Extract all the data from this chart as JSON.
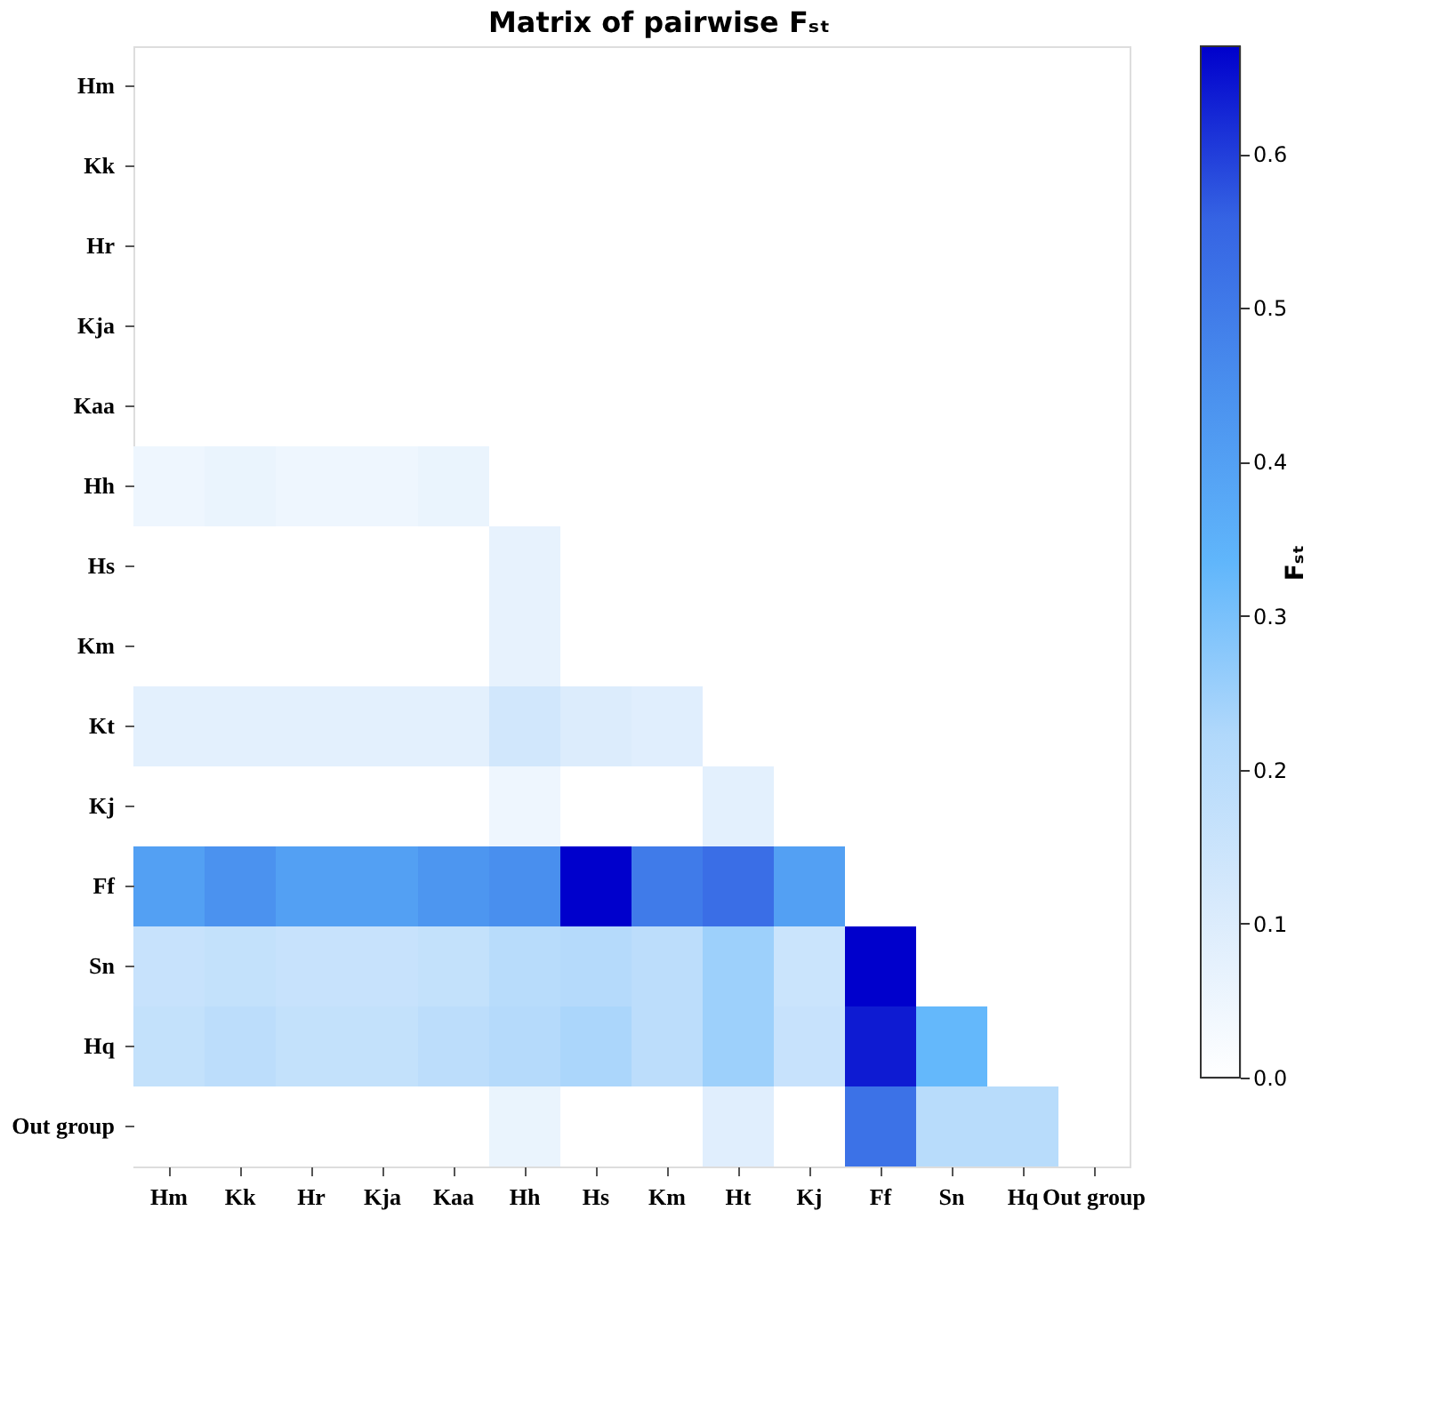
{
  "chart_data": {
    "type": "heatmap",
    "title": "Matrix of pairwise Fₛₜ",
    "clabel": "Fₛₜ",
    "categories": [
      "Hm",
      "Kk",
      "Hr",
      "Kja",
      "Kaa",
      "Hh",
      "Hs",
      "Km",
      "Ht",
      "Kj",
      "Ff",
      "Sn",
      "Hq",
      "Out group"
    ],
    "y_categories": [
      "Hm",
      "Kk",
      "Hr",
      "Kja",
      "Kaa",
      "Hh",
      "Hs",
      "Km",
      "Kt",
      "Kj",
      "Ff",
      "Sn",
      "Hq",
      "Out group"
    ],
    "cells": [
      [
        null,
        null,
        null,
        null,
        null,
        null,
        null,
        null,
        null,
        null,
        null,
        null,
        null,
        null
      ],
      [
        null,
        null,
        null,
        null,
        null,
        null,
        null,
        null,
        null,
        null,
        null,
        null,
        null,
        null
      ],
      [
        null,
        null,
        null,
        null,
        null,
        null,
        null,
        null,
        null,
        null,
        null,
        null,
        null,
        null
      ],
      [
        null,
        null,
        null,
        null,
        null,
        null,
        null,
        null,
        null,
        null,
        null,
        null,
        null,
        null
      ],
      [
        null,
        null,
        null,
        null,
        null,
        null,
        null,
        null,
        null,
        null,
        null,
        null,
        null,
        null
      ],
      [
        0.05,
        0.06,
        0.05,
        0.05,
        0.06,
        null,
        null,
        null,
        null,
        null,
        null,
        null,
        null,
        null
      ],
      [
        0,
        0,
        0,
        0,
        0,
        0.07,
        null,
        null,
        null,
        null,
        null,
        null,
        null,
        null
      ],
      [
        0,
        0,
        0,
        0,
        0,
        0.07,
        0,
        null,
        null,
        null,
        null,
        null,
        null,
        null
      ],
      [
        0.08,
        0.08,
        0.08,
        0.08,
        0.08,
        0.13,
        0.1,
        0.09,
        null,
        null,
        null,
        null,
        null,
        null
      ],
      [
        0,
        0,
        0,
        0,
        0,
        0.05,
        0,
        0,
        0.08,
        null,
        null,
        null,
        null,
        null
      ],
      [
        0.4,
        0.44,
        0.4,
        0.4,
        0.43,
        0.45,
        0.67,
        0.5,
        0.53,
        0.4,
        null,
        null,
        null,
        null
      ],
      [
        0.16,
        0.17,
        0.16,
        0.16,
        0.17,
        0.2,
        0.21,
        0.19,
        0.25,
        0.15,
        0.67,
        null,
        null,
        null
      ],
      [
        0.17,
        0.19,
        0.17,
        0.17,
        0.19,
        0.21,
        0.23,
        0.19,
        0.25,
        0.16,
        0.64,
        0.33,
        null,
        null
      ],
      [
        0,
        0,
        0,
        0,
        0,
        0.06,
        0,
        0,
        0.09,
        0,
        0.52,
        0.2,
        0.2,
        null
      ]
    ],
    "clim": [
      0,
      0.67
    ],
    "cticks": [
      {
        "value": 0,
        "label": "0.0"
      },
      0.1,
      0.2,
      0.3,
      0.4,
      0.5,
      0.6
    ]
  }
}
